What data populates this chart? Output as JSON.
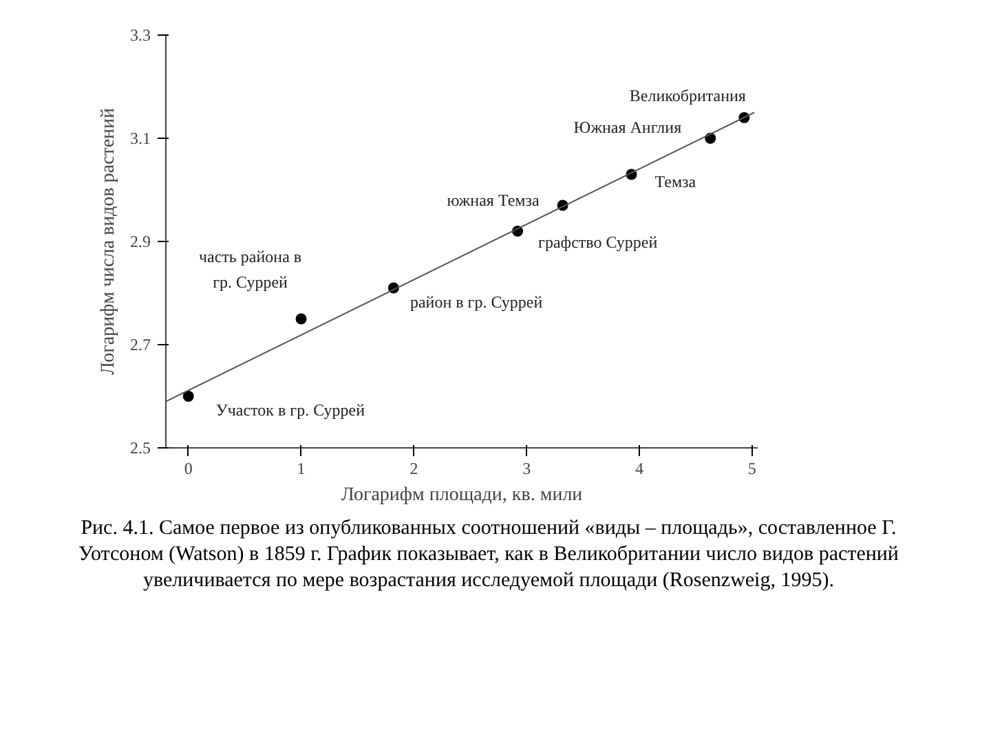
{
  "chart_data": {
    "type": "scatter",
    "xlabel": "Логарифм площади, кв. мили",
    "ylabel": "Логарифм числа видов растений",
    "series": [
      {
        "marker": "circle",
        "color": "#000000",
        "x": [
          0,
          1.0,
          1.82,
          2.92,
          3.32,
          3.93,
          4.63,
          4.93
        ],
        "values": [
          2.6,
          2.75,
          2.81,
          2.92,
          2.97,
          3.03,
          3.1,
          3.14
        ]
      },
      {
        "type": "line",
        "color": "#555555",
        "x": [
          -0.2,
          5.02
        ],
        "values": [
          2.59,
          3.15
        ]
      }
    ],
    "line_style": "solid",
    "grid": false,
    "xlim": [
      -0.2,
      5.05
    ],
    "ylim": [
      2.5,
      3.3
    ],
    "xticks": [
      0,
      1,
      2,
      3,
      4,
      5
    ],
    "yticks": [
      2.5,
      2.7,
      2.9,
      3.1,
      3.3
    ],
    "annotations": [
      {
        "text": "Участок в гр. Суррей",
        "x": 0,
        "y": 2.6
      },
      {
        "text": "часть района в\nгр. Суррей",
        "x": 1.0,
        "y": 2.75
      },
      {
        "text": "район в гр. Суррей",
        "x": 1.82,
        "y": 2.81
      },
      {
        "text": "графство Суррей",
        "x": 2.92,
        "y": 2.92
      },
      {
        "text": "южная Темза",
        "x": 3.32,
        "y": 2.97
      },
      {
        "text": "Темза",
        "x": 3.93,
        "y": 3.03
      },
      {
        "text": "Южная Англия",
        "x": 4.63,
        "y": 3.1
      },
      {
        "text": "Великобритания",
        "x": 4.93,
        "y": 3.14
      },
      "Рис. 4.1. Самое первое из опубликованных соотношений «виды – площадь», составленное Г. Уотсоном (Watson) в 1859 г. График показывает, как в Великобритании число видов растений увеличивается по мере возрастания исследуемой площади (Rosenzweig, 1995)."
    ]
  }
}
